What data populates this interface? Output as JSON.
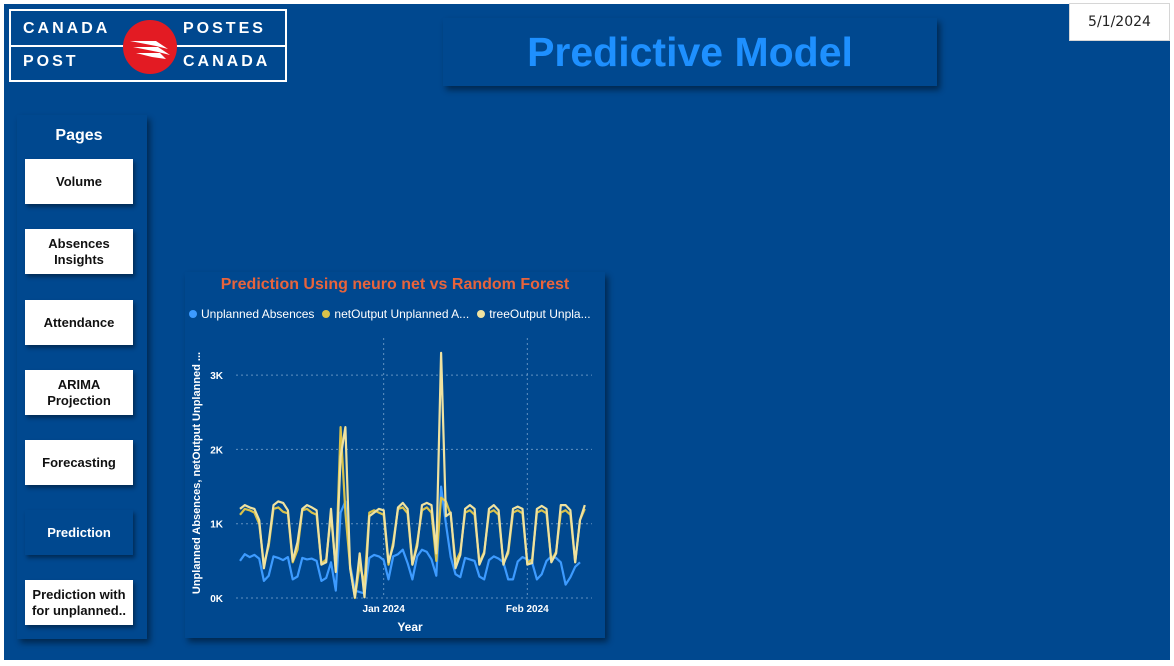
{
  "logo": {
    "top_left": "CANADA",
    "top_right": "POSTES",
    "bottom_left": "POST",
    "bottom_right": "CANADA",
    "emblem_color": "#e31b23"
  },
  "header": {
    "title": "Predictive Model",
    "title_color": "#1e90ff",
    "date": "5/1/2024"
  },
  "nav": {
    "title": "Pages",
    "items": [
      {
        "label": "Volume",
        "active": false
      },
      {
        "label": "Absences\nInsights",
        "active": false
      },
      {
        "label": "Attendance",
        "active": false
      },
      {
        "label": "ARIMA\nProjection",
        "active": false
      },
      {
        "label": "Forecasting",
        "active": false
      },
      {
        "label": "Prediction",
        "active": true
      },
      {
        "label": "Prediction with\nfor unplanned..",
        "active": false
      }
    ]
  },
  "colors": {
    "background": "#00488f",
    "series_actual": "#3d9bff",
    "series_net": "#d9c24a",
    "series_tree": "#efe2a0",
    "chart_title": "#e8643c"
  },
  "chart_data": {
    "type": "line",
    "title": "Prediction Using neuro net vs Random Forest",
    "xlabel": "Year",
    "ylabel": "Unplanned Absences, netOutput Unplanned ...",
    "ylim": [
      0,
      3500
    ],
    "y_ticks": [
      0,
      1000,
      2000,
      3000
    ],
    "y_tick_labels": [
      "0K",
      "1K",
      "2K",
      "3K"
    ],
    "x_tick_labels": [
      "Jan 2024",
      "Feb 2024"
    ],
    "x_tick_index": [
      30,
      60
    ],
    "grid": "dotted",
    "legend_position": "top-left",
    "legend": [
      "Unplanned Absences",
      "netOutput Unplanned A...",
      "treeOutput Unpla..."
    ],
    "series": [
      {
        "name": "Unplanned Absences",
        "color": "#3d9bff",
        "values": [
          500,
          590,
          550,
          580,
          530,
          230,
          300,
          560,
          540,
          510,
          550,
          250,
          290,
          540,
          520,
          530,
          500,
          230,
          270,
          480,
          100,
          1150,
          1300,
          450,
          100,
          80,
          60,
          540,
          580,
          560,
          510,
          250,
          560,
          590,
          650,
          470,
          250,
          560,
          650,
          620,
          520,
          300,
          1500,
          1000,
          550,
          320,
          280,
          540,
          520,
          500,
          290,
          250,
          510,
          560,
          530,
          480,
          250,
          250,
          490,
          550,
          520,
          480,
          250,
          320,
          500,
          560,
          540,
          480,
          180,
          280,
          420,
          480
        ]
      },
      {
        "name": "netOutput Unplanned A...",
        "color": "#d9c24a",
        "values": [
          1120,
          1200,
          1180,
          1150,
          1000,
          450,
          700,
          1200,
          1220,
          1160,
          1140,
          480,
          650,
          1180,
          1200,
          1150,
          1120,
          460,
          520,
          1120,
          380,
          2300,
          1150,
          420,
          0,
          440,
          200,
          1150,
          1180,
          1150,
          1120,
          450,
          750,
          1200,
          1220,
          1140,
          450,
          750,
          1180,
          1220,
          1150,
          500,
          1350,
          1300,
          1120,
          480,
          620,
          1150,
          1180,
          1120,
          480,
          620,
          1150,
          1180,
          1120,
          470,
          600,
          1150,
          1180,
          1140,
          470,
          520,
          1150,
          1180,
          1140,
          500,
          620,
          1150,
          1180,
          1120,
          480,
          1050,
          1200
        ]
      },
      {
        "name": "treeOutput Unpla...",
        "color": "#efe2a0",
        "values": [
          1200,
          1250,
          1220,
          1200,
          1050,
          400,
          750,
          1250,
          1300,
          1280,
          1180,
          500,
          750,
          1200,
          1250,
          1220,
          1180,
          450,
          480,
          1200,
          350,
          1900,
          2300,
          400,
          10,
          600,
          10,
          1100,
          1150,
          1200,
          1180,
          480,
          700,
          1220,
          1280,
          1200,
          450,
          700,
          1250,
          1280,
          1250,
          600,
          3300,
          1100,
          1150,
          400,
          580,
          1200,
          1250,
          1200,
          450,
          600,
          1200,
          1250,
          1180,
          450,
          640,
          1200,
          1230,
          1200,
          450,
          470,
          1200,
          1240,
          1200,
          480,
          600,
          1250,
          1250,
          1180,
          480,
          1050,
          1250
        ]
      }
    ]
  }
}
